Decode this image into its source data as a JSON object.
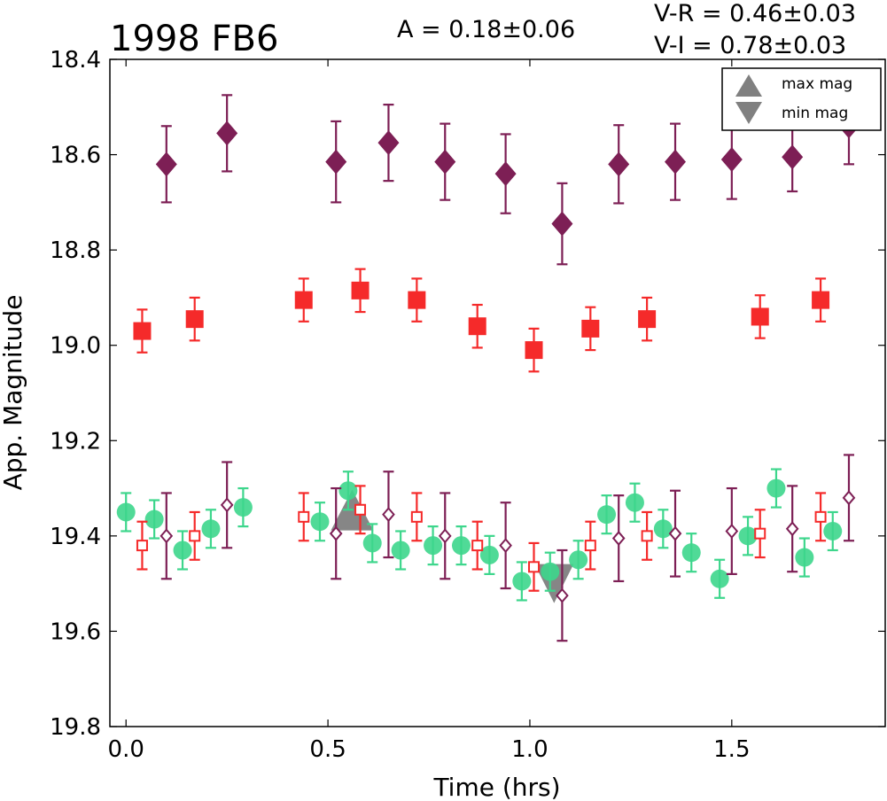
{
  "chart_data": {
    "type": "scatter",
    "title": "1998 FB6",
    "annotations": {
      "amplitude": "A  = 0.18±0.06",
      "v_r": "V-R = 0.46±0.03",
      "v_i": "V-I  = 0.78±0.03"
    },
    "xlabel": "Time (hrs)",
    "ylabel": "App. Magnitude",
    "xlim": [
      -0.04,
      1.88
    ],
    "ylim": [
      19.8,
      18.4
    ],
    "y_inverted": true,
    "xticks": [
      "0.0",
      "0.5",
      "1.0",
      "1.5"
    ],
    "yticks": [
      "18.4",
      "18.6",
      "18.8",
      "19.0",
      "19.2",
      "19.4",
      "19.6",
      "19.8"
    ],
    "xtick_values": [
      0.0,
      0.5,
      1.0,
      1.5
    ],
    "ytick_values": [
      18.4,
      18.6,
      18.8,
      19.0,
      19.2,
      19.4,
      19.6,
      19.8
    ],
    "grid": false,
    "legend": {
      "placement": "top-right",
      "entries": [
        {
          "label": "max mag",
          "marker": "triangle-up",
          "color": "#808080"
        },
        {
          "label": "min mag",
          "marker": "triangle-down",
          "color": "#808080"
        }
      ]
    },
    "series": [
      {
        "marker": "diamond-filled",
        "color": "#7d1f55",
        "x": [
          0.1,
          0.25,
          0.52,
          0.65,
          0.79,
          0.94,
          1.08,
          1.22,
          1.36,
          1.5,
          1.65,
          1.79
        ],
        "y": [
          18.62,
          18.555,
          18.615,
          18.575,
          18.615,
          18.64,
          18.745,
          18.62,
          18.615,
          18.61,
          18.605,
          18.54
        ],
        "err": [
          0.08,
          0.08,
          0.085,
          0.08,
          0.08,
          0.083,
          0.085,
          0.082,
          0.08,
          0.083,
          0.072,
          0.08
        ]
      },
      {
        "marker": "square-filled",
        "color": "#f52a2a",
        "x": [
          0.04,
          0.17,
          0.44,
          0.58,
          0.72,
          0.87,
          1.01,
          1.15,
          1.29,
          1.57,
          1.72
        ],
        "y": [
          18.97,
          18.945,
          18.905,
          18.885,
          18.905,
          18.96,
          19.01,
          18.965,
          18.945,
          18.94,
          18.905
        ],
        "err": [
          0.045,
          0.045,
          0.045,
          0.045,
          0.045,
          0.045,
          0.045,
          0.045,
          0.045,
          0.045,
          0.045
        ]
      },
      {
        "marker": "circle-filled",
        "color": "#3dd68c",
        "x": [
          0.0,
          0.07,
          0.14,
          0.21,
          0.29,
          0.48,
          0.55,
          0.61,
          0.68,
          0.76,
          0.83,
          0.9,
          0.98,
          1.05,
          1.12,
          1.19,
          1.26,
          1.33,
          1.4,
          1.47,
          1.54,
          1.61,
          1.68,
          1.75
        ],
        "y": [
          19.35,
          19.365,
          19.43,
          19.385,
          19.34,
          19.37,
          19.305,
          19.415,
          19.43,
          19.42,
          19.42,
          19.44,
          19.495,
          19.475,
          19.45,
          19.355,
          19.33,
          19.385,
          19.435,
          19.49,
          19.4,
          19.3,
          19.445,
          19.39
        ],
        "err": [
          0.04,
          0.04,
          0.04,
          0.04,
          0.04,
          0.04,
          0.04,
          0.04,
          0.04,
          0.04,
          0.04,
          0.04,
          0.04,
          0.04,
          0.04,
          0.04,
          0.04,
          0.04,
          0.04,
          0.04,
          0.04,
          0.04,
          0.04,
          0.04
        ]
      },
      {
        "marker": "square-open",
        "color": "#f52a2a",
        "x": [
          0.04,
          0.17,
          0.44,
          0.58,
          0.72,
          0.87,
          1.01,
          1.15,
          1.29,
          1.57,
          1.72
        ],
        "y": [
          19.42,
          19.4,
          19.36,
          19.345,
          19.36,
          19.42,
          19.465,
          19.42,
          19.4,
          19.395,
          19.36
        ],
        "err": [
          0.05,
          0.05,
          0.05,
          0.05,
          0.05,
          0.05,
          0.05,
          0.05,
          0.05,
          0.05,
          0.05
        ]
      },
      {
        "marker": "diamond-open",
        "color": "#7d1f55",
        "x": [
          0.1,
          0.25,
          0.52,
          0.65,
          0.79,
          0.94,
          1.08,
          1.22,
          1.36,
          1.5,
          1.65,
          1.79
        ],
        "y": [
          19.4,
          19.335,
          19.395,
          19.355,
          19.4,
          19.42,
          19.525,
          19.405,
          19.395,
          19.39,
          19.385,
          19.32
        ],
        "err": [
          0.09,
          0.09,
          0.095,
          0.09,
          0.09,
          0.09,
          0.095,
          0.09,
          0.09,
          0.09,
          0.09,
          0.09
        ]
      },
      {
        "label": "max mag",
        "marker": "triangle-up",
        "color": "#808080",
        "x": [
          0.56
        ],
        "y": [
          19.355
        ]
      },
      {
        "label": "min mag",
        "marker": "triangle-down",
        "color": "#808080",
        "x": [
          1.06
        ],
        "y": [
          19.5
        ]
      }
    ]
  }
}
